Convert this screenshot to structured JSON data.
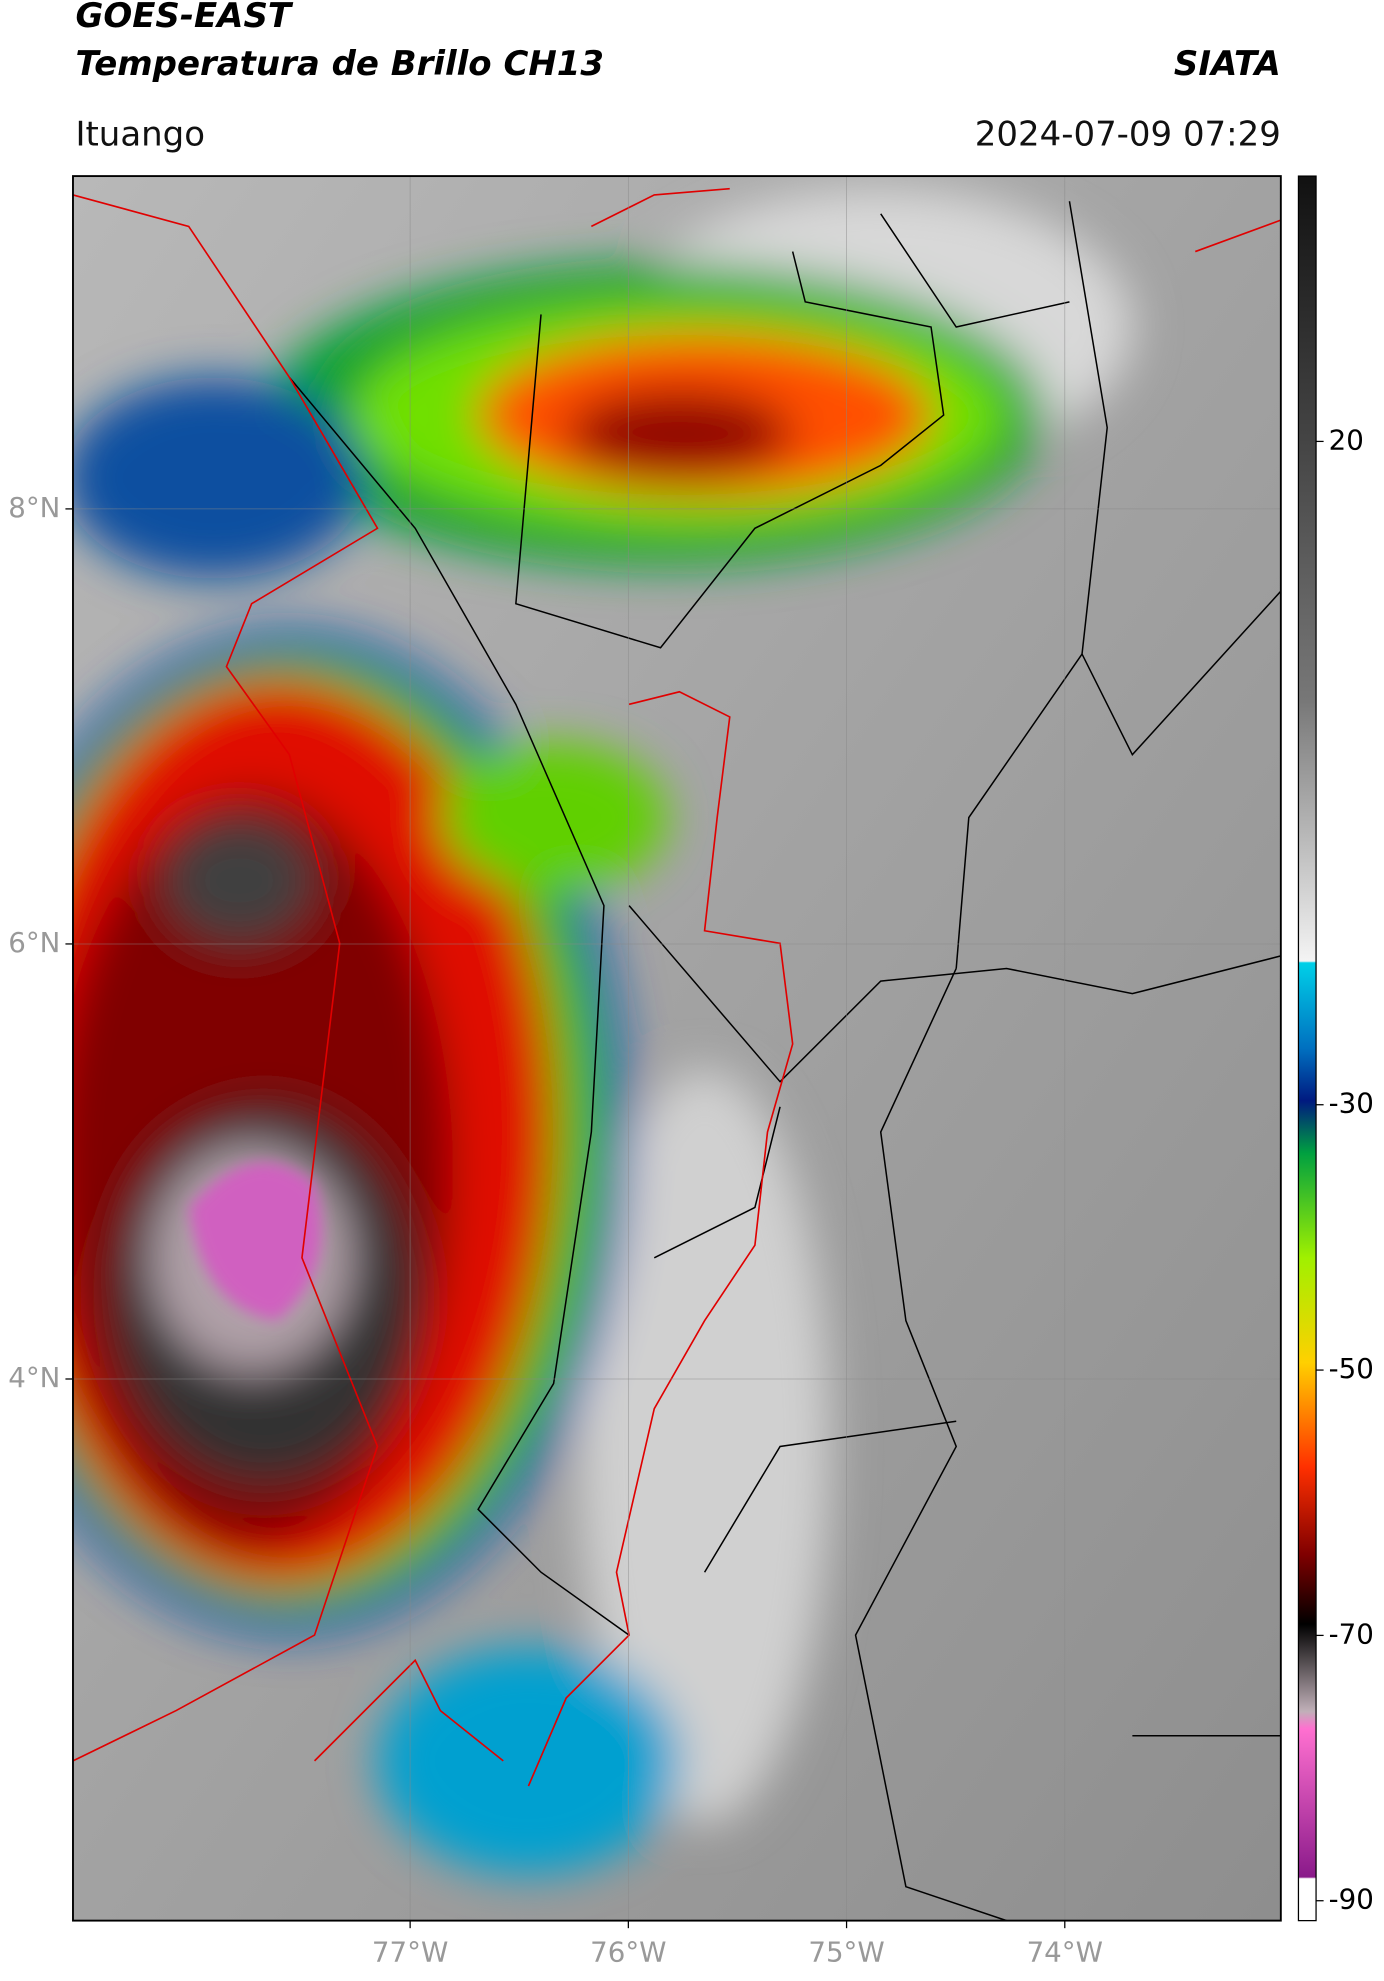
{
  "header": {
    "title": "GOES-EAST",
    "subtitle": "Temperatura de Brillo CH13",
    "brand": "SIATA",
    "region": "Ituango",
    "timestamp": "2024-07-09 07:29"
  },
  "map": {
    "xlim": [
      -78.545,
      -73.01
    ],
    "ylim": [
      1.51,
      9.53
    ],
    "xticks": [
      {
        "value": -77,
        "label": "77°W"
      },
      {
        "value": -76,
        "label": "76°W"
      },
      {
        "value": -75,
        "label": "75°W"
      },
      {
        "value": -74,
        "label": "74°W"
      }
    ],
    "yticks": [
      {
        "value": 8,
        "label": "8°N"
      },
      {
        "value": 6,
        "label": "6°N"
      },
      {
        "value": 4,
        "label": "4°N"
      }
    ],
    "grid": true
  },
  "colorbar": {
    "lim": [
      -91.5,
      40
    ],
    "ticks": [
      20,
      -30,
      -50,
      -70,
      -90
    ]
  }
}
